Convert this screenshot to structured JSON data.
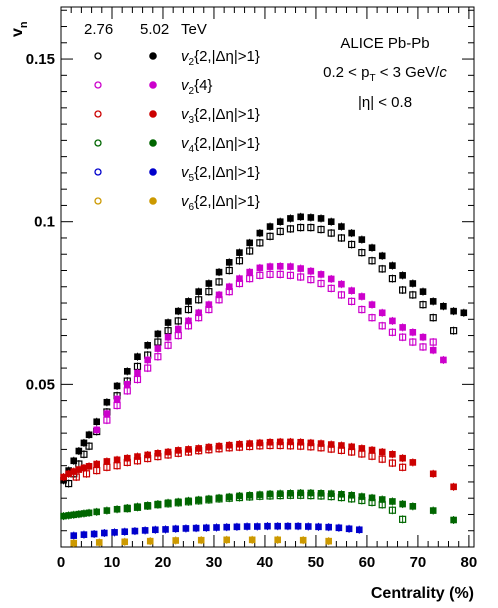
{
  "chart_data": {
    "type": "scatter",
    "ylabel_main": "v",
    "ylabel_sub": "n",
    "xlabel": "Centrality (%)",
    "xlim": [
      0,
      81
    ],
    "ylim": [
      0.0,
      0.166
    ],
    "x_ticks": [
      "0",
      "10",
      "20",
      "30",
      "40",
      "50",
      "60",
      "70",
      "80"
    ],
    "y_ticks": [
      "0.05",
      "0.1",
      "0.15"
    ],
    "annotations": [
      "ALICE Pb-Pb",
      "0.2 < p",
      "T",
      " < 3 GeV/",
      "c",
      "|η| < 0.8"
    ],
    "legend": {
      "placement": "top-left",
      "energy_header": [
        "2.76",
        "5.02",
        "TeV"
      ],
      "entries": [
        {
          "v": "v",
          "sub": "2",
          "rest": "{2,|Δη|>1}",
          "color": "#000000"
        },
        {
          "v": "v",
          "sub": "2",
          "rest": "{4}",
          "color": "#cc00cc"
        },
        {
          "v": "v",
          "sub": "3",
          "rest": "{2,|Δη|>1}",
          "color": "#cc0000"
        },
        {
          "v": "v",
          "sub": "4",
          "rest": "{2,|Δη|>1}",
          "color": "#006600"
        },
        {
          "v": "v",
          "sub": "5",
          "rest": "{2,|Δη|>1}",
          "color": "#0000cc"
        },
        {
          "v": "v",
          "sub": "6",
          "rest": "{2,|Δη|>1}",
          "color": "#cc9900"
        }
      ]
    },
    "series": [
      {
        "name": "v2{2,|Δη|>1} 5.02 TeV",
        "style": "filled",
        "color": "#000000",
        "x": [
          0.5,
          1.5,
          2.5,
          3.5,
          4.5,
          5.5,
          7,
          9,
          11,
          13,
          15,
          17,
          19,
          21,
          23,
          25,
          27,
          29,
          31,
          33,
          35,
          37,
          39,
          41,
          43,
          45,
          47,
          49,
          51,
          53,
          55,
          57,
          59,
          61,
          63,
          65,
          67,
          69,
          71,
          73,
          75,
          77,
          79
        ],
        "y": [
          0.0205,
          0.0235,
          0.0265,
          0.0295,
          0.032,
          0.0345,
          0.0385,
          0.0445,
          0.0495,
          0.054,
          0.0585,
          0.062,
          0.0655,
          0.069,
          0.0725,
          0.0755,
          0.0785,
          0.081,
          0.0845,
          0.0875,
          0.0905,
          0.0935,
          0.0965,
          0.0985,
          0.1,
          0.101,
          0.1015,
          0.1013,
          0.101,
          0.1,
          0.0985,
          0.0965,
          0.0945,
          0.092,
          0.0895,
          0.0865,
          0.0835,
          0.081,
          0.0785,
          0.0755,
          0.074,
          0.0725,
          0.072
        ]
      },
      {
        "name": "v2{2,|Δη|>1} 2.76 TeV",
        "style": "open",
        "color": "#000000",
        "x": [
          1.5,
          2.5,
          3.5,
          4.5,
          5.5,
          7,
          9,
          11,
          13,
          15,
          17,
          19,
          21,
          23,
          25,
          27,
          29,
          31,
          33,
          35,
          37,
          39,
          41,
          43,
          45,
          47,
          49,
          51,
          53,
          55,
          57,
          59,
          61,
          63,
          65,
          67,
          69,
          71,
          73,
          77
        ],
        "y": [
          0.0195,
          0.0225,
          0.0255,
          0.0285,
          0.031,
          0.0355,
          0.0415,
          0.0465,
          0.051,
          0.0555,
          0.059,
          0.063,
          0.0665,
          0.0695,
          0.073,
          0.076,
          0.0785,
          0.0815,
          0.085,
          0.088,
          0.091,
          0.0935,
          0.0955,
          0.097,
          0.0978,
          0.0982,
          0.0982,
          0.0976,
          0.0965,
          0.095,
          0.093,
          0.0905,
          0.088,
          0.0855,
          0.0825,
          0.079,
          0.0775,
          0.0745,
          0.0705,
          0.0665
        ]
      },
      {
        "name": "v2{4} 5.02 TeV",
        "style": "filled",
        "color": "#cc00cc",
        "x": [
          7,
          9,
          11,
          13,
          15,
          17,
          19,
          21,
          23,
          25,
          27,
          29,
          31,
          33,
          35,
          37,
          39,
          41,
          43,
          45,
          47,
          49,
          51,
          53,
          55,
          57,
          59,
          61,
          63,
          65,
          67,
          69,
          71,
          73,
          75
        ],
        "y": [
          0.036,
          0.041,
          0.0455,
          0.05,
          0.0535,
          0.0575,
          0.061,
          0.0645,
          0.067,
          0.0695,
          0.072,
          0.0745,
          0.0775,
          0.08,
          0.0825,
          0.0845,
          0.0858,
          0.0862,
          0.0863,
          0.0862,
          0.0856,
          0.0848,
          0.0838,
          0.0824,
          0.0808,
          0.0788,
          0.077,
          0.0745,
          0.072,
          0.0695,
          0.0675,
          0.066,
          0.0645,
          0.0605,
          0.0575
        ]
      },
      {
        "name": "v2{4} 2.76 TeV",
        "style": "open",
        "color": "#cc00cc",
        "x": [
          9,
          11,
          13,
          15,
          17,
          19,
          21,
          23,
          25,
          27,
          29,
          31,
          33,
          35,
          37,
          39,
          41,
          43,
          45,
          47,
          49,
          51,
          53,
          55,
          57,
          59,
          61,
          63,
          65,
          67,
          69,
          71,
          73
        ],
        "y": [
          0.039,
          0.0435,
          0.048,
          0.0515,
          0.055,
          0.0585,
          0.062,
          0.065,
          0.068,
          0.0705,
          0.073,
          0.076,
          0.0785,
          0.081,
          0.0825,
          0.0835,
          0.0838,
          0.0838,
          0.0835,
          0.083,
          0.0822,
          0.081,
          0.0795,
          0.0775,
          0.0755,
          0.073,
          0.0705,
          0.068,
          0.066,
          0.0645,
          0.063,
          0.0615,
          0.063
        ]
      },
      {
        "name": "v3{2,|Δη|>1} 5.02 TeV",
        "style": "filled",
        "color": "#cc0000",
        "x": [
          0.5,
          1.5,
          2.5,
          3.5,
          4.5,
          5.5,
          7,
          9,
          11,
          13,
          15,
          17,
          19,
          21,
          23,
          25,
          27,
          29,
          31,
          33,
          35,
          37,
          39,
          41,
          43,
          45,
          47,
          49,
          51,
          53,
          55,
          57,
          59,
          61,
          63,
          65,
          67,
          69,
          73,
          77
        ],
        "y": [
          0.0215,
          0.0225,
          0.0232,
          0.0238,
          0.0243,
          0.0248,
          0.0255,
          0.0263,
          0.0268,
          0.0273,
          0.0278,
          0.0283,
          0.0288,
          0.0292,
          0.0297,
          0.03,
          0.0303,
          0.0307,
          0.031,
          0.0313,
          0.0316,
          0.0318,
          0.032,
          0.0322,
          0.0323,
          0.0323,
          0.0322,
          0.032,
          0.0318,
          0.0315,
          0.0312,
          0.0308,
          0.0303,
          0.0298,
          0.0292,
          0.0285,
          0.0273,
          0.026,
          0.0225,
          0.0185
        ]
      },
      {
        "name": "v3{2,|Δη|>1} 2.76 TeV",
        "style": "open",
        "color": "#cc0000",
        "x": [
          3,
          5,
          7,
          9,
          11,
          13,
          15,
          17,
          19,
          21,
          23,
          25,
          27,
          29,
          31,
          33,
          35,
          37,
          39,
          41,
          43,
          45,
          47,
          49,
          51,
          53,
          55,
          57,
          59,
          61,
          63,
          65,
          67
        ],
        "y": [
          0.0215,
          0.0225,
          0.0235,
          0.0245,
          0.025,
          0.026,
          0.0265,
          0.0272,
          0.0278,
          0.0283,
          0.0288,
          0.0292,
          0.0296,
          0.0299,
          0.0302,
          0.0305,
          0.0307,
          0.0309,
          0.0311,
          0.0312,
          0.0312,
          0.0311,
          0.031,
          0.0308,
          0.0305,
          0.0301,
          0.0297,
          0.0292,
          0.0286,
          0.0279,
          0.027,
          0.0258,
          0.0245
        ]
      },
      {
        "name": "v4{2,|Δη|>1} 5.02 TeV",
        "style": "filled",
        "color": "#006600",
        "x": [
          0.5,
          1.5,
          2.5,
          3.5,
          4.5,
          5.5,
          7,
          9,
          11,
          13,
          15,
          17,
          19,
          21,
          23,
          25,
          27,
          29,
          31,
          33,
          35,
          37,
          39,
          41,
          43,
          45,
          47,
          49,
          51,
          53,
          55,
          57,
          59,
          61,
          63,
          65,
          67,
          69,
          73,
          77
        ],
        "y": [
          0.0095,
          0.0097,
          0.0099,
          0.0101,
          0.0103,
          0.0105,
          0.0108,
          0.0112,
          0.0116,
          0.012,
          0.0124,
          0.0128,
          0.0132,
          0.0136,
          0.0139,
          0.0142,
          0.0145,
          0.0148,
          0.0151,
          0.0154,
          0.0157,
          0.0159,
          0.0161,
          0.0163,
          0.0164,
          0.0165,
          0.0166,
          0.0166,
          0.0165,
          0.0164,
          0.0162,
          0.0159,
          0.0155,
          0.0151,
          0.0146,
          0.014,
          0.0132,
          0.0125,
          0.0112,
          0.0083
        ]
      },
      {
        "name": "v4{2,|Δη|>1} 2.76 TeV",
        "style": "open",
        "color": "#006600",
        "x": [
          13,
          15,
          17,
          19,
          21,
          23,
          25,
          27,
          29,
          31,
          33,
          35,
          37,
          39,
          41,
          43,
          45,
          47,
          49,
          51,
          53,
          55,
          57,
          59,
          61,
          63,
          65,
          67
        ],
        "y": [
          0.0118,
          0.0122,
          0.0126,
          0.013,
          0.0133,
          0.0136,
          0.0139,
          0.0142,
          0.0145,
          0.0148,
          0.015,
          0.0152,
          0.0154,
          0.0156,
          0.0157,
          0.0158,
          0.0159,
          0.0159,
          0.0158,
          0.0157,
          0.0155,
          0.0152,
          0.0148,
          0.0143,
          0.0137,
          0.013,
          0.0113,
          0.0085
        ]
      },
      {
        "name": "v5{2,|Δη|>1} 5.02 TeV",
        "style": "filled",
        "color": "#0000cc",
        "x": [
          2.5,
          4.5,
          6.5,
          8.5,
          10.5,
          12.5,
          14.5,
          16.5,
          18.5,
          20.5,
          22.5,
          24.5,
          26.5,
          28.5,
          30.5,
          32.5,
          34.5,
          36.5,
          38.5,
          40.5,
          42.5,
          44.5,
          46.5,
          48.5,
          50.5,
          52.5,
          54.5,
          56.5,
          58.5
        ],
        "y": [
          0.0035,
          0.0038,
          0.004,
          0.0043,
          0.0045,
          0.0047,
          0.0049,
          0.0051,
          0.0053,
          0.0054,
          0.0056,
          0.0057,
          0.0058,
          0.0059,
          0.006,
          0.0061,
          0.0062,
          0.0063,
          0.0063,
          0.0064,
          0.0064,
          0.0064,
          0.0064,
          0.0063,
          0.0062,
          0.0061,
          0.0059,
          0.0056,
          0.0053
        ]
      },
      {
        "name": "v6{2,|Δη|>1} 5.02 TeV",
        "style": "filled",
        "color": "#cc9900",
        "x": [
          2.5,
          7.5,
          12.5,
          17.5,
          22.5,
          27.5,
          32.5,
          37.5,
          42.5,
          47.5,
          52.5
        ],
        "y": [
          0.0012,
          0.0014,
          0.0016,
          0.0018,
          0.002,
          0.0021,
          0.0022,
          0.0022,
          0.0022,
          0.0021,
          0.0018
        ]
      }
    ]
  }
}
